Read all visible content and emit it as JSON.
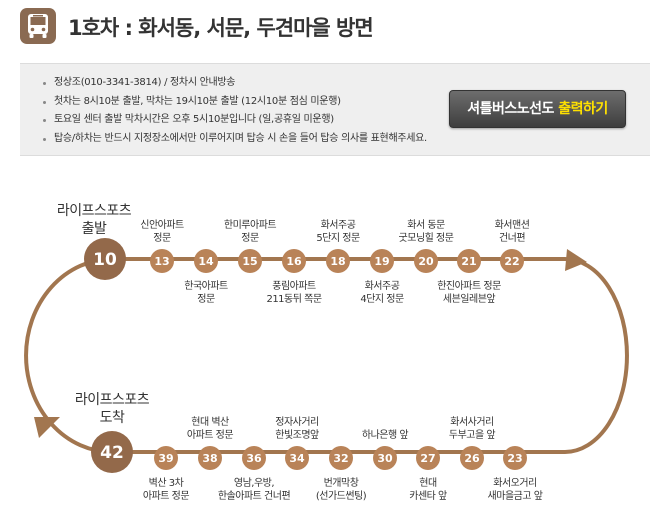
{
  "header": {
    "icon": "bus-icon",
    "title": "1호차 : 화서동, 서문, 두견마을 방면"
  },
  "info": {
    "items": [
      "정상조(010-3341-3814) / 정차시 안내방송",
      "첫차는 8시10분 출발, 막차는 19시10분 출발 (12시10분 점심 미운행)",
      "토요일 센터 출발 막차시간은 오후 5시10분입니다 (일,공휴일 미운행)",
      "탑승/하차는 반드시 지정장소에서만 이루어지며 탑승 시 손을 들어 탑승 의사를 표현해주세요."
    ],
    "print_button": {
      "prefix": "셔틀버스노선도",
      "highlight": "출력하기"
    }
  },
  "colors": {
    "route": "#a2764f",
    "stop": "#b98358",
    "terminal": "#93694a",
    "button_highlight": "#ffe100"
  },
  "route": {
    "start": {
      "label_line1": "라이프스포츠",
      "label_line2": "출발",
      "number": "10"
    },
    "end": {
      "label_line1": "라이프스포츠",
      "label_line2": "도착",
      "number": "42"
    },
    "top_stops": [
      {
        "number": "13",
        "label": [
          "신안아파트",
          "정문"
        ],
        "label_pos": "above"
      },
      {
        "number": "14",
        "label": [
          "한국아파트",
          "정문"
        ],
        "label_pos": "below"
      },
      {
        "number": "15",
        "label": [
          "한미루아파트",
          "정문"
        ],
        "label_pos": "above"
      },
      {
        "number": "16",
        "label": [
          "풍림아파트",
          "211동뒤 쪽문"
        ],
        "label_pos": "below"
      },
      {
        "number": "18",
        "label": [
          "화서주공",
          "5단지 정문"
        ],
        "label_pos": "above"
      },
      {
        "number": "19",
        "label": [
          "화서주공",
          "4단지 정문"
        ],
        "label_pos": "below"
      },
      {
        "number": "20",
        "label": [
          "화서 동문",
          "굿모닝힐 정문"
        ],
        "label_pos": "above"
      },
      {
        "number": "21",
        "label": [
          "한진아파트 정문",
          "세븐일레븐앞"
        ],
        "label_pos": "below"
      },
      {
        "number": "22",
        "label": [
          "화서맨션",
          "건너편"
        ],
        "label_pos": "above"
      }
    ],
    "bottom_stops": [
      {
        "number": "39",
        "label": [
          "벽산 3차",
          "아파트 정문"
        ],
        "label_pos": "below"
      },
      {
        "number": "38",
        "label": [
          "현대 벽산",
          "아파트 정문"
        ],
        "label_pos": "above"
      },
      {
        "number": "36",
        "label": [
          "영남,우방,",
          "한솔아파트 건너편"
        ],
        "label_pos": "below"
      },
      {
        "number": "34",
        "label": [
          "정자사거리",
          "한빛조명앞"
        ],
        "label_pos": "above"
      },
      {
        "number": "32",
        "label": [
          "번개막창",
          "(선가드썬팅)"
        ],
        "label_pos": "below"
      },
      {
        "number": "30",
        "label": [
          "하나은행 앞"
        ],
        "label_pos": "above"
      },
      {
        "number": "27",
        "label": [
          "현대",
          "카센타 앞"
        ],
        "label_pos": "below"
      },
      {
        "number": "26",
        "label": [
          "화서사거리",
          "두부고을 앞"
        ],
        "label_pos": "above"
      },
      {
        "number": "23",
        "label": [
          "화서오거리",
          "새마을금고 앞"
        ],
        "label_pos": "below"
      }
    ]
  }
}
